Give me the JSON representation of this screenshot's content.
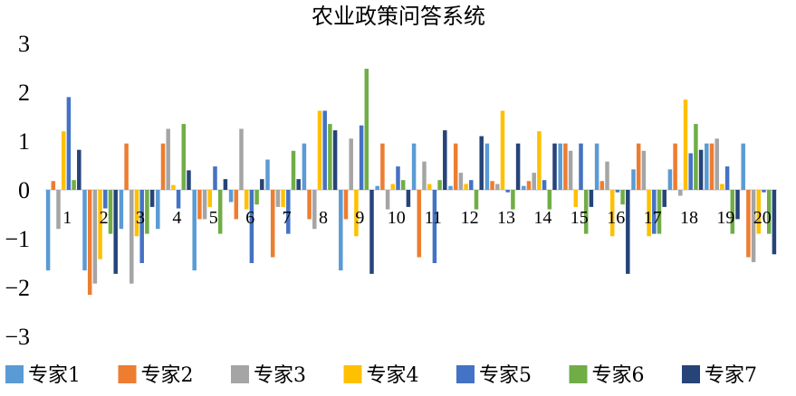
{
  "chart_data": {
    "type": "bar",
    "title": "农业政策问答系统",
    "xlabel": "",
    "ylabel": "",
    "ylim": [
      -3,
      3
    ],
    "yticks": [
      -3,
      -2,
      -1,
      0,
      1,
      2,
      3
    ],
    "legend_position": "bottom",
    "grid": false,
    "categories": [
      "1",
      "2",
      "3",
      "4",
      "5",
      "6",
      "7",
      "8",
      "9",
      "10",
      "11",
      "12",
      "13",
      "14",
      "15",
      "16",
      "17",
      "18",
      "19",
      "20"
    ],
    "series": [
      {
        "name": "专家1",
        "color": "#5b9bd5",
        "values": [
          -1.65,
          -1.65,
          -0.8,
          -0.8,
          -1.65,
          -0.25,
          0.62,
          0.95,
          -1.65,
          0.08,
          0.95,
          0.08,
          0.95,
          0.08,
          0.95,
          0.95,
          0.42,
          0.42,
          0.95,
          0.95
        ]
      },
      {
        "name": "专家2",
        "color": "#ed7d31",
        "values": [
          0.18,
          -2.15,
          0.95,
          0.95,
          -0.6,
          -0.6,
          -1.38,
          -0.6,
          -0.6,
          0.95,
          -1.38,
          0.95,
          0.18,
          0.18,
          0.95,
          0.18,
          0.95,
          0.95,
          0.95,
          -1.38
        ]
      },
      {
        "name": "专家3",
        "color": "#a5a5a5",
        "values": [
          -0.8,
          -1.92,
          -1.92,
          1.25,
          -0.6,
          1.25,
          -0.35,
          -0.8,
          1.05,
          -0.4,
          0.58,
          0.35,
          0.12,
          0.35,
          0.8,
          0.58,
          0.8,
          -0.12,
          1.05,
          -1.48
        ]
      },
      {
        "name": "专家4",
        "color": "#ffc000",
        "values": [
          1.2,
          -1.42,
          -0.95,
          0.1,
          -0.35,
          -0.4,
          -0.35,
          1.62,
          -0.95,
          0.12,
          0.12,
          0.12,
          1.62,
          1.2,
          -0.35,
          -0.95,
          -0.95,
          1.85,
          0.12,
          -0.9
        ]
      },
      {
        "name": "专家5",
        "color": "#4472c4",
        "values": [
          1.9,
          -0.38,
          -1.5,
          -0.38,
          0.48,
          -1.5,
          -0.9,
          1.62,
          1.32,
          0.48,
          -1.5,
          0.2,
          -0.05,
          0.2,
          0.95,
          -0.05,
          -0.9,
          0.75,
          0.48,
          -0.05
        ]
      },
      {
        "name": "专家6",
        "color": "#70ad47",
        "values": [
          0.2,
          -0.9,
          -0.9,
          1.35,
          -0.9,
          -0.3,
          0.8,
          1.35,
          2.48,
          0.2,
          0.2,
          -0.4,
          -0.4,
          -0.4,
          -0.9,
          -0.3,
          -0.9,
          1.35,
          -0.9,
          -0.9
        ]
      },
      {
        "name": "专家7",
        "color": "#264478",
        "values": [
          0.82,
          -1.72,
          -0.35,
          0.4,
          0.22,
          0.22,
          0.22,
          1.22,
          -1.72,
          -0.35,
          1.22,
          1.1,
          0.95,
          0.95,
          -0.35,
          -1.72,
          -0.35,
          0.82,
          -0.6,
          -1.32
        ]
      }
    ]
  }
}
